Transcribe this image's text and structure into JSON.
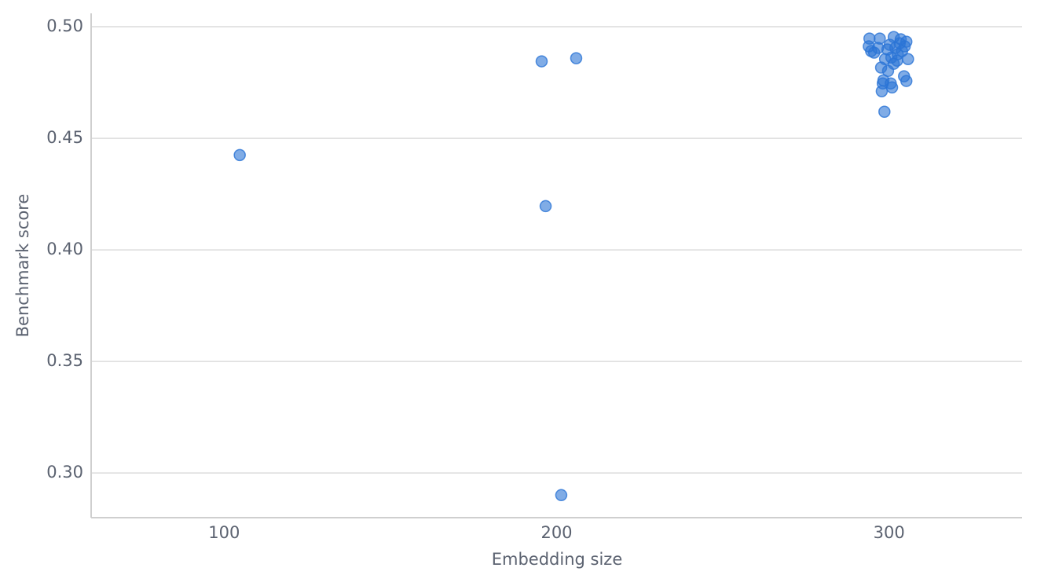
{
  "chart_data": {
    "type": "scatter",
    "x_label": "Embedding size",
    "y_label": "Benchmark score",
    "xlim": [
      60,
      340
    ],
    "ylim": [
      0.28,
      0.506
    ],
    "xticks": [
      100,
      200,
      300
    ],
    "yticks": [
      {
        "value": 0.3,
        "label": "0.30"
      },
      {
        "value": 0.35,
        "label": "0.35"
      },
      {
        "value": 0.4,
        "label": "0.40"
      },
      {
        "value": 0.45,
        "label": "0.45"
      },
      {
        "value": 0.5,
        "label": "0.50"
      }
    ],
    "grid": true,
    "color": "#2b74d6",
    "x": [
      104.7,
      195.5,
      205.9,
      196.7,
      201.4,
      294.1,
      297.2,
      293.9,
      294.6,
      295.5,
      297.6,
      299.7,
      298.3,
      298.1,
      297.8,
      300.5,
      300.9,
      298.6,
      304.5,
      305.2,
      305.7,
      301.4,
      303.5,
      305.2,
      304.7,
      301.9,
      299.5,
      302.6,
      300.7,
      302.4,
      298.8,
      303.9,
      303.2,
      300.2,
      296.7,
      301.4
    ],
    "values": [
      0.4425,
      0.4845,
      0.4859,
      0.4196,
      0.2901,
      0.4947,
      0.4947,
      0.4912,
      0.4891,
      0.4884,
      0.4817,
      0.4802,
      0.476,
      0.4746,
      0.4711,
      0.4746,
      0.4728,
      0.4619,
      0.4778,
      0.4757,
      0.4855,
      0.4954,
      0.4944,
      0.4933,
      0.4912,
      0.4905,
      0.4898,
      0.4877,
      0.4862,
      0.4848,
      0.4855,
      0.4891,
      0.4926,
      0.4919,
      0.4905,
      0.4834
    ]
  }
}
